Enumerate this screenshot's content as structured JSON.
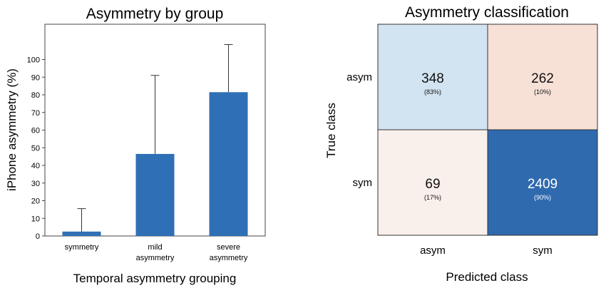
{
  "bar_chart": {
    "title": "Asymmetry by group",
    "xlabel": "Temporal asymmetry grouping",
    "ylabel": "iPhone asymmetry (%)",
    "yticks": [
      "0",
      "10",
      "20",
      "30",
      "40",
      "50",
      "60",
      "70",
      "80",
      "90",
      "100"
    ]
  },
  "confusion_matrix": {
    "title": "Asymmetry classification",
    "xlabel": "Predicted class",
    "ylabel": "True class",
    "col_labels": [
      "asym",
      "sym"
    ],
    "row_labels": [
      "asym",
      "sym"
    ],
    "cells": [
      [
        {
          "count": "348",
          "pct": "(83%)"
        },
        {
          "count": "262",
          "pct": "(10%)"
        }
      ],
      [
        {
          "count": "69",
          "pct": "(17%)"
        },
        {
          "count": "2409",
          "pct": "(90%)"
        }
      ]
    ]
  },
  "chart_data": [
    {
      "type": "bar",
      "title": "Asymmetry by group",
      "xlabel": "Temporal asymmetry grouping",
      "ylabel": "iPhone asymmetry (%)",
      "categories": [
        [
          "symmetry"
        ],
        [
          "mild",
          "asymmetry"
        ],
        [
          "severe",
          "asymmetry"
        ]
      ],
      "values": [
        2.5,
        46.5,
        81.5
      ],
      "error_upper": [
        15.5,
        91,
        108.5
      ],
      "ylim": [
        0,
        120
      ],
      "color": "#2f6fb5"
    },
    {
      "type": "heatmap",
      "title": "Asymmetry classification",
      "xlabel": "Predicted class",
      "ylabel": "True class",
      "x": [
        "asym",
        "sym"
      ],
      "y": [
        "asym",
        "sym"
      ],
      "values": [
        [
          348,
          262
        ],
        [
          69,
          2409
        ]
      ],
      "percent_labels": [
        [
          "(83%)",
          "(10%)"
        ],
        [
          "(17%)",
          "(90%)"
        ]
      ],
      "cell_colors": [
        [
          "#d2e3f1",
          "#f7e1d7"
        ],
        [
          "#faf0eb",
          "#2f6aae"
        ]
      ]
    }
  ]
}
